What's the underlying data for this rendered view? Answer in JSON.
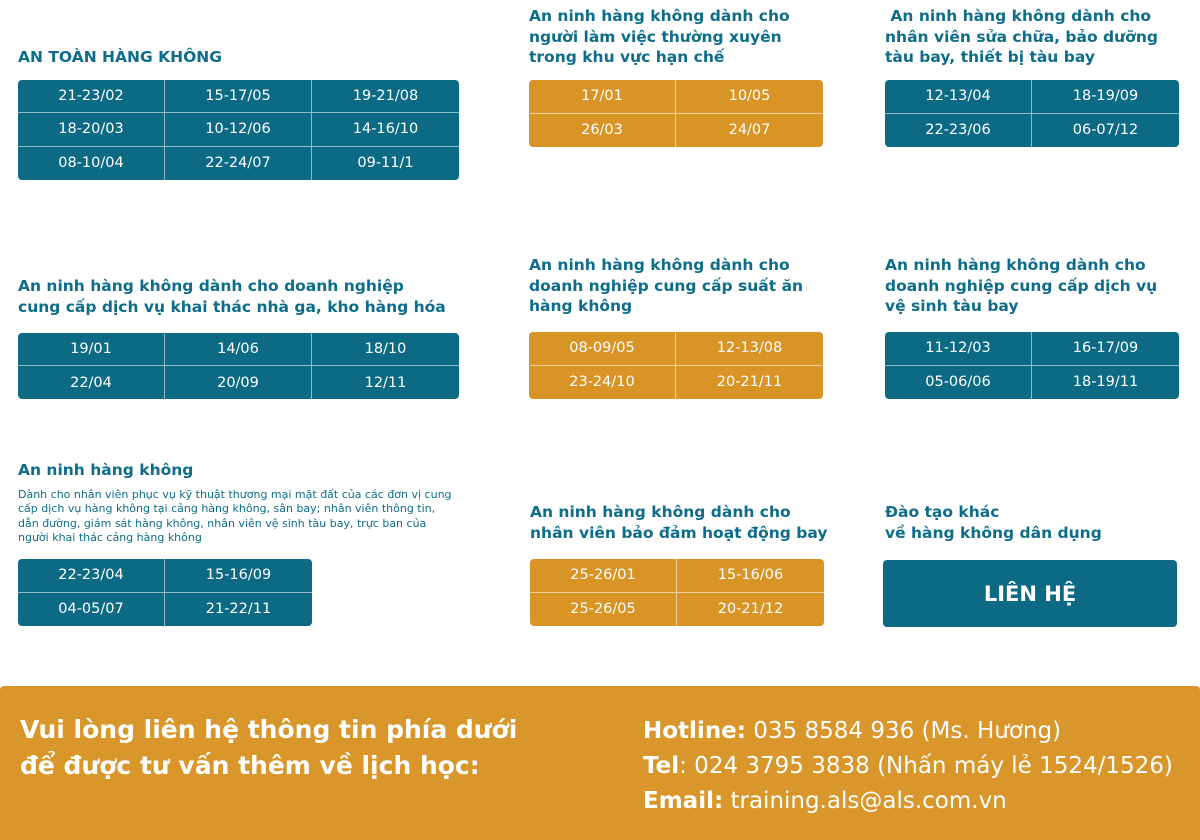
{
  "sections": [
    {
      "title": [
        "AN TOÀN HÀNG KHÔNG"
      ],
      "rows": [
        [
          "21-23/02",
          "15-17/05",
          "19-21/08"
        ],
        [
          "18-20/03",
          "10-12/06",
          "14-16/10"
        ],
        [
          "08-10/04",
          "22-24/07",
          "09-11/1"
        ]
      ]
    },
    {
      "title": [
        "An ninh hàng không dành cho",
        "người làm việc thường xuyên",
        "trong khu vực hạn chế"
      ],
      "rows": [
        [
          "17/01",
          "10/05"
        ],
        [
          "26/03",
          "24/07"
        ]
      ]
    },
    {
      "title": [
        " An ninh hàng không dành cho",
        "nhân viên sửa chữa, bảo dưỡng",
        "tàu bay, thiết bị tàu bay"
      ],
      "rows": [
        [
          "12-13/04",
          "18-19/09"
        ],
        [
          "22-23/06",
          "06-07/12"
        ]
      ]
    },
    {
      "title": [
        "An ninh hàng không dành cho doanh nghiệp",
        "cung cấp dịch vụ khai thác nhà ga, kho hàng hóa"
      ],
      "rows": [
        [
          "19/01",
          "14/06",
          "18/10"
        ],
        [
          "22/04",
          "20/09",
          "12/11"
        ]
      ]
    },
    {
      "title": [
        "An ninh hàng không dành cho",
        "doanh nghiệp cung cấp suất ăn",
        "hàng không"
      ],
      "rows": [
        [
          "08-09/05",
          "12-13/08"
        ],
        [
          "23-24/10",
          "20-21/11"
        ]
      ]
    },
    {
      "title": [
        "An ninh hàng không dành cho",
        "doanh nghiệp cung cấp dịch vụ",
        "vệ sinh tàu bay"
      ],
      "rows": [
        [
          "11-12/03",
          "16-17/09"
        ],
        [
          "05-06/06",
          "18-19/11"
        ]
      ]
    },
    {
      "title": [
        "An ninh hàng không"
      ],
      "description": "Dành cho nhân viên phục vụ kỹ thuật thương mại mặt đất của các đơn vị cung cấp dịch vụ hàng không tại cảng hàng không, sân bay; nhân viên thông tin, dẫn đường, giám sát hàng không, nhân viên vệ sinh tàu bay, trực ban của người khai thác cảng hàng không",
      "rows": [
        [
          "22-23/04",
          "15-16/09"
        ],
        [
          "04-05/07",
          "21-22/11"
        ]
      ]
    },
    {
      "title": [
        "An ninh hàng không dành cho",
        "nhân viên bảo đảm hoạt động bay"
      ],
      "rows": [
        [
          "25-26/01",
          "15-16/06"
        ],
        [
          "25-26/05",
          "20-21/12"
        ]
      ]
    },
    {
      "title": [
        "Đào tạo khác",
        "về hàng không dân dụng"
      ],
      "button": "LIÊN HỆ"
    }
  ],
  "footer": {
    "message": [
      "Vui lòng liên hệ thông tin phía dưới",
      "để được tư vấn thêm về lịch học:"
    ],
    "contacts": [
      {
        "label": "Hotline:",
        "value": " 035 8584 936 (Ms. Hương)"
      },
      {
        "label": "Tel",
        "value": ": 024 3795 3838 (Nhấn máy lẻ 1524/1526)"
      },
      {
        "label": "Email:",
        "value": " training.als@als.com.vn"
      }
    ]
  }
}
